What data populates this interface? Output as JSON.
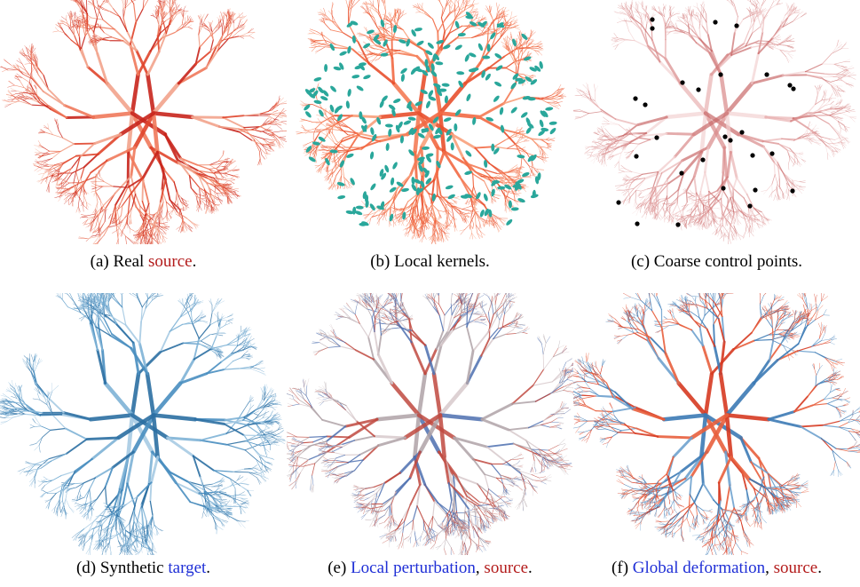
{
  "panels": [
    {
      "parts": [
        {
          "text": "(a) Real "
        },
        {
          "text": "source",
          "color": "#b31b1b"
        },
        {
          "text": "."
        }
      ]
    },
    {
      "parts": [
        {
          "text": "(b) Local kernels."
        }
      ]
    },
    {
      "parts": [
        {
          "text": "(c) Coarse control points."
        }
      ]
    },
    {
      "parts": [
        {
          "text": "(d) Synthetic "
        },
        {
          "text": "target",
          "color": "#1f2fd6"
        },
        {
          "text": "."
        }
      ]
    },
    {
      "parts": [
        {
          "text": "(e) "
        },
        {
          "text": "Local perturbation",
          "color": "#1f2fd6"
        },
        {
          "text": ", "
        },
        {
          "text": "source",
          "color": "#b31b1b"
        },
        {
          "text": "."
        }
      ]
    },
    {
      "parts": [
        {
          "text": "(f) "
        },
        {
          "text": "Global deformation",
          "color": "#1f2fd6"
        },
        {
          "text": ", "
        },
        {
          "text": "source",
          "color": "#b31b1b"
        },
        {
          "text": "."
        }
      ]
    }
  ]
}
